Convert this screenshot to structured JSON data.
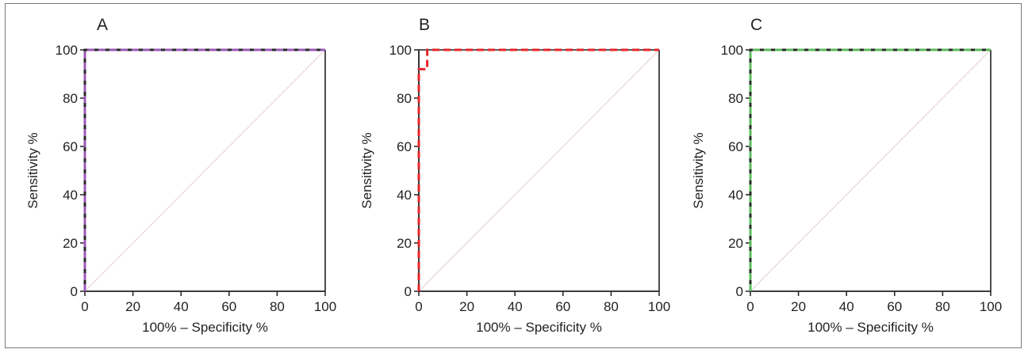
{
  "chart_data": [
    {
      "panel_label": "A",
      "type": "line",
      "xlabel": "100% – Specificity %",
      "ylabel": "Sensitivity %",
      "xlim": [
        0,
        100
      ],
      "ylim": [
        0,
        100
      ],
      "xticks": [
        0,
        20,
        40,
        60,
        80,
        100
      ],
      "yticks": [
        0,
        20,
        40,
        60,
        80,
        100
      ],
      "grid": false,
      "reference_line": {
        "x": [
          0,
          100
        ],
        "y": [
          0,
          100
        ],
        "color": "#e8d8d8"
      },
      "series": [
        {
          "color": "#9b59b6",
          "line_style": "dashed",
          "x": [
            0,
            0,
            100
          ],
          "y": [
            0,
            100,
            100
          ]
        }
      ]
    },
    {
      "panel_label": "B",
      "type": "line",
      "xlabel": "100% – Specificity %",
      "ylabel": "Sensitivity %",
      "xlim": [
        0,
        100
      ],
      "ylim": [
        0,
        100
      ],
      "xticks": [
        0,
        20,
        40,
        60,
        80,
        100
      ],
      "yticks": [
        0,
        20,
        40,
        60,
        80,
        100
      ],
      "grid": false,
      "reference_line": {
        "x": [
          0,
          100
        ],
        "y": [
          0,
          100
        ],
        "color": "#e8d8d8"
      },
      "series": [
        {
          "color": "#e8262a",
          "line_style": "dashed",
          "x": [
            0,
            0,
            3.5,
            3.5,
            100
          ],
          "y": [
            0,
            92,
            92,
            100,
            100
          ]
        }
      ]
    },
    {
      "panel_label": "C",
      "type": "line",
      "xlabel": "100% – Specificity %",
      "ylabel": "Sensitivity %",
      "xlim": [
        0,
        100
      ],
      "ylim": [
        0,
        100
      ],
      "xticks": [
        0,
        20,
        40,
        60,
        80,
        100
      ],
      "yticks": [
        0,
        20,
        40,
        60,
        80,
        100
      ],
      "grid": false,
      "reference_line": {
        "x": [
          0,
          100
        ],
        "y": [
          0,
          100
        ],
        "color": "#e8d8d8"
      },
      "series": [
        {
          "color": "#5cb85c",
          "line_style": "dashed",
          "x": [
            0,
            0,
            100
          ],
          "y": [
            0,
            100,
            100
          ]
        }
      ]
    }
  ]
}
